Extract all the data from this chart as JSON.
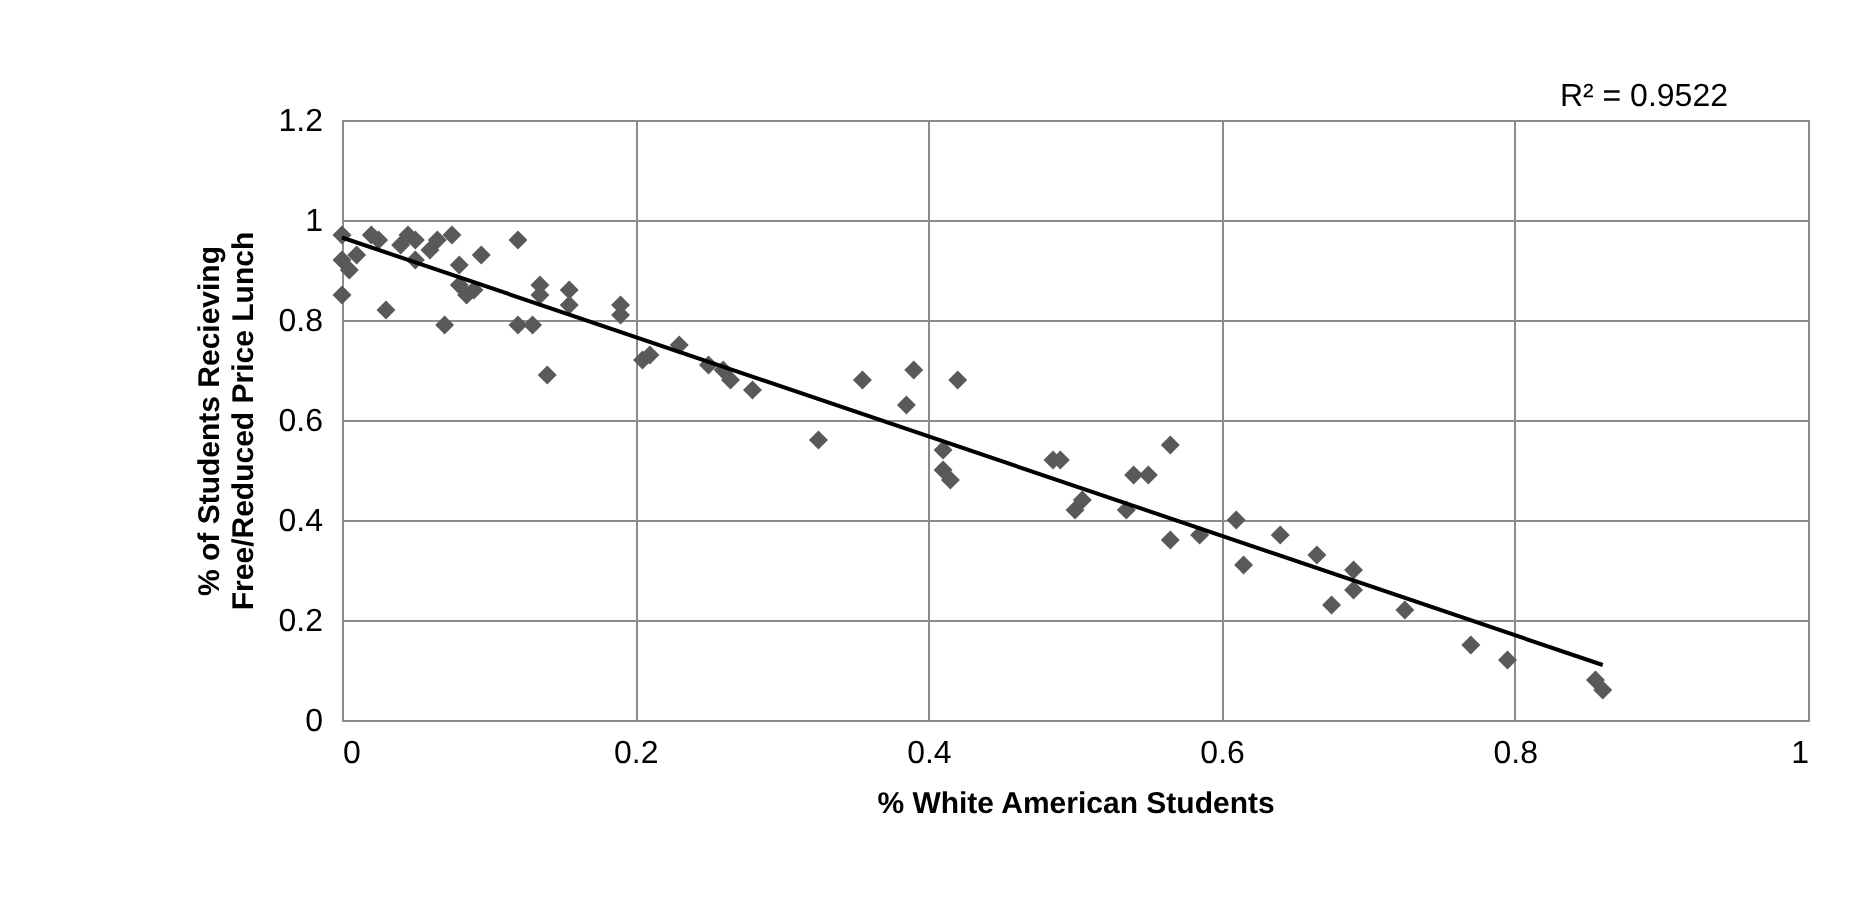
{
  "chart_data": {
    "type": "scatter",
    "xlabel": "% White American Students",
    "ylabel": "% of Students Recieving\nFree/Reduced Price Lunch",
    "xlim": [
      0,
      1
    ],
    "xticks": [
      0,
      0.2,
      0.4,
      0.6,
      0.8,
      1
    ],
    "ylim": [
      0,
      1.2
    ],
    "yticks": [
      0,
      0.2,
      0.4,
      0.6,
      0.8,
      1,
      1.2
    ],
    "grid": true,
    "annotations": [
      "R² = 0.9522"
    ],
    "series": [
      {
        "marker": "diamond",
        "color": "#595959",
        "x": [
          0,
          0,
          0,
          0.005,
          0.01,
          0.02,
          0.025,
          0.03,
          0.04,
          0.045,
          0.05,
          0.05,
          0.06,
          0.065,
          0.07,
          0.075,
          0.08,
          0.08,
          0.085,
          0.09,
          0.095,
          0.12,
          0.12,
          0.13,
          0.135,
          0.135,
          0.14,
          0.155,
          0.155,
          0.19,
          0.19,
          0.205,
          0.21,
          0.23,
          0.25,
          0.26,
          0.265,
          0.28,
          0.325,
          0.355,
          0.39,
          0.385,
          0.42,
          0.41,
          0.41,
          0.415,
          0.485,
          0.49,
          0.5,
          0.505,
          0.535,
          0.54,
          0.55,
          0.565,
          0.565,
          0.585,
          0.61,
          0.615,
          0.64,
          0.665,
          0.675,
          0.69,
          0.69,
          0.725,
          0.77,
          0.795,
          0.855,
          0.86
        ],
        "values": [
          0.97,
          0.92,
          0.85,
          0.9,
          0.93,
          0.97,
          0.96,
          0.82,
          0.95,
          0.97,
          0.92,
          0.96,
          0.94,
          0.96,
          0.79,
          0.97,
          0.87,
          0.91,
          0.85,
          0.86,
          0.93,
          0.96,
          0.79,
          0.79,
          0.87,
          0.85,
          0.69,
          0.86,
          0.83,
          0.81,
          0.83,
          0.72,
          0.73,
          0.75,
          0.71,
          0.7,
          0.68,
          0.66,
          0.56,
          0.68,
          0.7,
          0.63,
          0.68,
          0.54,
          0.5,
          0.48,
          0.52,
          0.52,
          0.42,
          0.44,
          0.42,
          0.49,
          0.49,
          0.55,
          0.36,
          0.37,
          0.4,
          0.31,
          0.37,
          0.33,
          0.23,
          0.3,
          0.26,
          0.22,
          0.15,
          0.12,
          0.08,
          0.06
        ]
      },
      {
        "type": "line",
        "marker": "none",
        "color": "#000000",
        "x": [
          0,
          0.86
        ],
        "values": [
          0.965,
          0.11
        ]
      }
    ]
  }
}
